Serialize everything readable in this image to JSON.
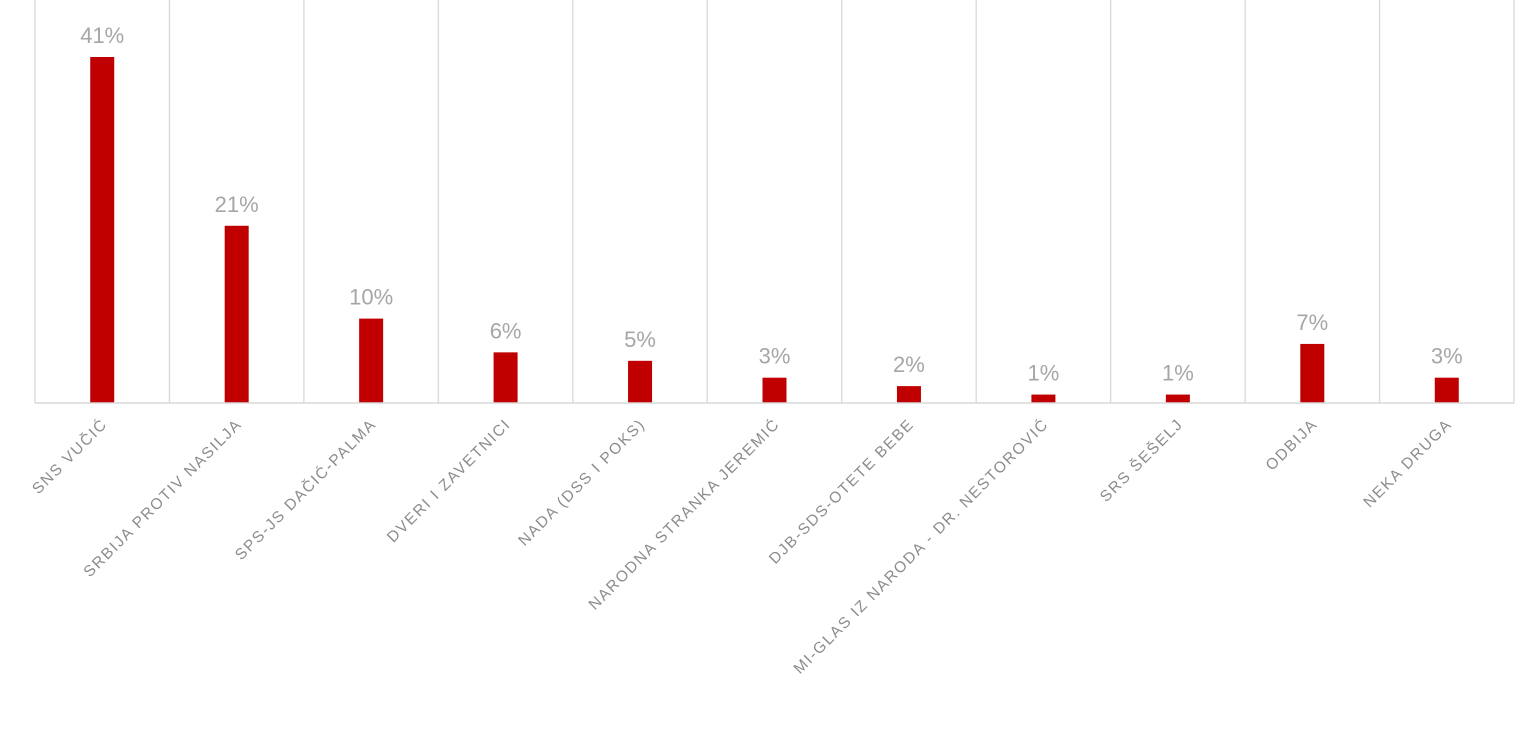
{
  "chart_data": {
    "type": "bar",
    "title": "",
    "xlabel": "",
    "ylabel": "",
    "categories": [
      "SNS VUČIĆ",
      "SRBIJA PROTIV NASILJA",
      "SPS-JS DAČIĆ-PALMA",
      "DVERI I ZAVETNICI",
      "NADA (DSS I POKS)",
      "NARODNA STRANKA JEREMIĆ",
      "DJB-SDS-OTETE BEBE",
      "MI-GLAS IZ NARODA - DR. NESTOROVIĆ",
      "SRS ŠEŠELJ",
      "ODBIJA",
      "NEKA DRUGA"
    ],
    "values": [
      41,
      21,
      10,
      6,
      5,
      3,
      2,
      1,
      1,
      7,
      3
    ],
    "data_labels": [
      "41%",
      "21%",
      "10%",
      "6%",
      "5%",
      "3%",
      "2%",
      "1%",
      "1%",
      "7%",
      "3%"
    ],
    "unit": "%",
    "ylim": [
      0,
      41
    ],
    "grid": "vertical category separators",
    "legend": "none",
    "bar_color": "#c00000"
  }
}
